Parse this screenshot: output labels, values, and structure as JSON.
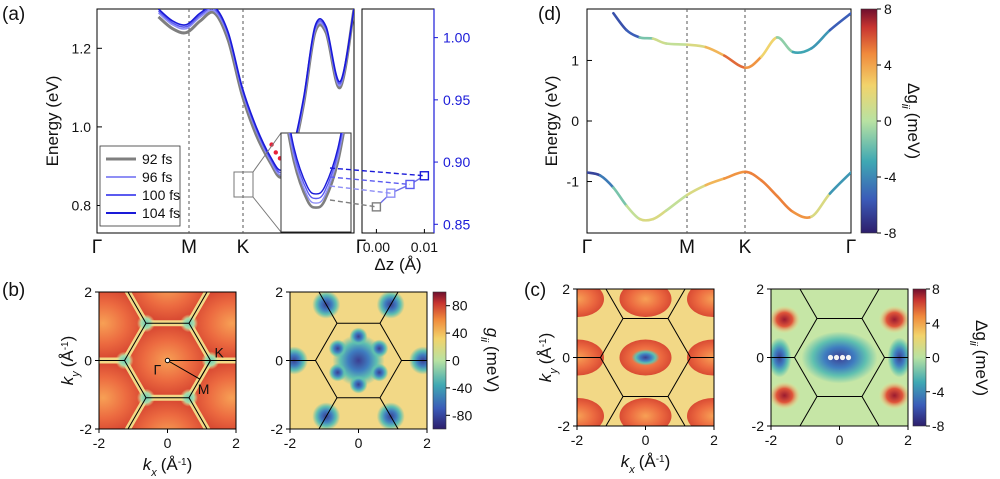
{
  "panels": {
    "a": "(a)",
    "b": "(b)",
    "c": "(c)",
    "d": "(d)"
  },
  "colors": {
    "band_92": "#7f7f7f",
    "band_96": "#8f8ff5",
    "band_100": "#5b5bf0",
    "band_104": "#1a1ad8",
    "right_axis": "#1a1ad8",
    "valley_marker": "#e8223a",
    "bz_line": "#000000"
  },
  "chart_data": [
    {
      "id": "a-main",
      "type": "line",
      "ylabel": "Energy (eV)",
      "ylim": [
        0.73,
        1.3
      ],
      "yticks": [
        "0.8",
        "1.0",
        "1.2"
      ],
      "ytick_values": [
        0.8,
        1.0,
        1.2
      ],
      "xticks": [
        "Γ",
        "M",
        "K"
      ],
      "kpath_nodes": [
        0.0,
        0.45,
        0.74
      ],
      "legend": [
        "92 fs",
        "96 fs",
        "100 fs",
        "104 fs"
      ],
      "legend_position": "lower-left",
      "series": [
        {
          "name": "92 fs",
          "color_key": "band_92",
          "k": [
            0.3,
            0.35,
            0.4,
            0.45,
            0.5,
            0.55,
            0.6,
            0.65,
            0.7,
            0.74,
            0.78,
            0.82,
            0.86,
            0.9,
            0.95,
            1.0
          ],
          "energy": [
            1.28,
            1.25,
            1.24,
            1.27,
            1.29,
            1.22,
            1.08,
            0.98,
            0.91,
            0.872,
            0.93,
            1.06,
            1.24,
            1.24,
            1.1,
            1.3
          ]
        },
        {
          "name": "96 fs",
          "color_key": "band_96",
          "k": [
            0.3,
            0.35,
            0.4,
            0.45,
            0.5,
            0.55,
            0.6,
            0.65,
            0.7,
            0.74,
            0.78,
            0.82,
            0.86,
            0.9,
            0.95,
            1.0
          ],
          "energy": [
            1.29,
            1.26,
            1.25,
            1.28,
            1.295,
            1.23,
            1.09,
            0.99,
            0.915,
            0.878,
            0.935,
            1.065,
            1.245,
            1.245,
            1.105,
            1.3
          ]
        },
        {
          "name": "100 fs",
          "color_key": "band_100",
          "k": [
            0.3,
            0.35,
            0.4,
            0.45,
            0.5,
            0.55,
            0.6,
            0.65,
            0.7,
            0.74,
            0.78,
            0.82,
            0.86,
            0.9,
            0.95,
            1.0
          ],
          "energy": [
            1.295,
            1.265,
            1.255,
            1.285,
            1.3,
            1.235,
            1.095,
            0.995,
            0.92,
            0.884,
            0.94,
            1.07,
            1.25,
            1.25,
            1.11,
            1.3
          ]
        },
        {
          "name": "104 fs",
          "color_key": "band_104",
          "k": [
            0.3,
            0.35,
            0.4,
            0.45,
            0.5,
            0.55,
            0.6,
            0.65,
            0.7,
            0.74,
            0.78,
            0.82,
            0.86,
            0.9,
            0.95,
            1.0
          ],
          "energy": [
            1.3,
            1.27,
            1.26,
            1.29,
            1.305,
            1.24,
            1.1,
            1.0,
            0.925,
            0.89,
            0.945,
            1.075,
            1.255,
            1.255,
            1.115,
            1.3
          ]
        }
      ]
    },
    {
      "id": "a-right",
      "type": "line",
      "xlabel": "Δz (Å)",
      "xlim": [
        -0.003,
        0.012
      ],
      "xticks": [
        "0.00",
        "0.01"
      ],
      "xtick_values": [
        0.0,
        0.01
      ],
      "x_edge_label": "Γ",
      "ylim": [
        0.843,
        1.023
      ],
      "yticks": [
        "0.85",
        "0.90",
        "0.95",
        "1.00"
      ],
      "ytick_values": [
        0.85,
        0.9,
        0.95,
        1.0
      ],
      "axis_color_key": "right_axis",
      "x": [
        0.0,
        0.003,
        0.007,
        0.01
      ],
      "y": [
        0.864,
        0.875,
        0.882,
        0.889
      ]
    },
    {
      "id": "d-bands",
      "type": "line",
      "ylabel": "Energy (eV)",
      "ylim": [
        -1.85,
        1.85
      ],
      "yticks": [
        "-1",
        "0",
        "1"
      ],
      "ytick_values": [
        -1,
        0,
        1
      ],
      "xticks": [
        "Γ",
        "M",
        "K",
        "Γ"
      ],
      "kpath_nodes": [
        0.0,
        0.38,
        0.6,
        1.0
      ],
      "colorbar": {
        "label": "Δg",
        "label_sub": "ii",
        "label_unit": "(meV)",
        "range": [
          -8,
          8
        ],
        "ticks": [
          "8",
          "4",
          "0",
          "-4",
          "-8"
        ],
        "tick_values": [
          8,
          4,
          0,
          -4,
          -8
        ]
      },
      "conduction": {
        "k": [
          0.1,
          0.15,
          0.2,
          0.25,
          0.3,
          0.38,
          0.45,
          0.52,
          0.6,
          0.66,
          0.72,
          0.78,
          0.85,
          0.92,
          1.0
        ],
        "energy": [
          1.78,
          1.5,
          1.38,
          1.36,
          1.28,
          1.26,
          1.22,
          1.08,
          0.88,
          1.06,
          1.38,
          1.14,
          1.2,
          1.5,
          1.78
        ],
        "dg": [
          -6,
          -6,
          -5,
          2,
          0,
          1,
          2,
          5,
          6,
          3,
          2,
          -4,
          -2,
          -5,
          -6
        ]
      },
      "valence": {
        "k": [
          0.0,
          0.05,
          0.1,
          0.15,
          0.2,
          0.25,
          0.3,
          0.38,
          0.45,
          0.52,
          0.6,
          0.66,
          0.72,
          0.78,
          0.85,
          0.92,
          1.0
        ],
        "energy": [
          -0.85,
          -0.9,
          -1.1,
          -1.4,
          -1.62,
          -1.62,
          -1.48,
          -1.22,
          -1.06,
          -0.95,
          -0.84,
          -0.98,
          -1.24,
          -1.5,
          -1.58,
          -1.2,
          -0.85
        ],
        "dg": [
          -7,
          -6,
          -3,
          0,
          1,
          2,
          1,
          0,
          3,
          4,
          5,
          5,
          5,
          5,
          4,
          -1,
          -6
        ]
      }
    },
    {
      "id": "b-left",
      "type": "heatmap",
      "xlabel": "k",
      "xlabel_sub": "x",
      "xlabel_unit": "(Å",
      "ylabel": "k",
      "ylabel_sub": "y",
      "ylabel_unit": "(Å",
      "unit_power": "-1",
      "unit_close": ")",
      "xticks": [
        "-2",
        "0",
        "2"
      ],
      "yticks": [
        "2",
        "0",
        "-2"
      ],
      "xlim": [
        -2,
        2
      ],
      "ylim": [
        -2,
        2
      ],
      "point_labels": [
        "Γ",
        "M",
        "K"
      ]
    },
    {
      "id": "b-right",
      "type": "heatmap",
      "xticks": [
        "-2",
        "0",
        "2"
      ],
      "yticks": [
        "2",
        "0",
        "-2"
      ],
      "xlim": [
        -2,
        2
      ],
      "ylim": [
        -2,
        2
      ],
      "colorbar": {
        "label": "g",
        "label_sub": "ii",
        "label_unit": "(meV)",
        "range": [
          -100,
          100
        ],
        "ticks": [
          "80",
          "40",
          "0",
          "-40",
          "-80"
        ],
        "tick_values": [
          80,
          40,
          0,
          -40,
          -80
        ]
      }
    },
    {
      "id": "c-left",
      "type": "heatmap",
      "xticks": [
        "-2",
        "0",
        "2"
      ],
      "yticks": [
        "2",
        "0",
        "-2"
      ],
      "xlim": [
        -2,
        2
      ],
      "ylim": [
        -2,
        2
      ]
    },
    {
      "id": "c-right",
      "type": "heatmap",
      "xticks": [
        "-2",
        "0",
        "2"
      ],
      "yticks": [
        "2",
        "0",
        "-2"
      ],
      "xlim": [
        -2,
        2
      ],
      "ylim": [
        -2,
        2
      ],
      "colorbar": {
        "label": "Δg",
        "label_sub": "ii",
        "label_unit": "(meV)",
        "range": [
          -8,
          8
        ],
        "ticks": [
          "8",
          "4",
          "0",
          "-4",
          "-8"
        ],
        "tick_values": [
          8,
          4,
          0,
          -4,
          -8
        ]
      }
    }
  ]
}
